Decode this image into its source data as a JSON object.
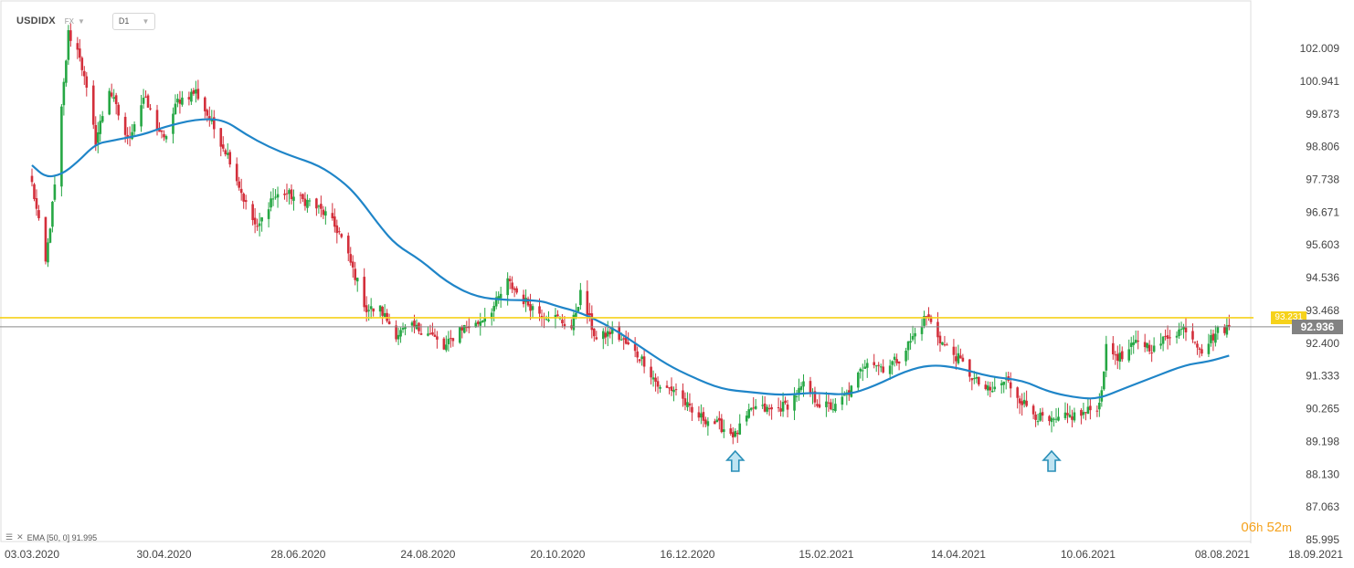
{
  "toolbar": {
    "symbol": "USDIDX",
    "type_label": "FX",
    "timeframe": "D1"
  },
  "indicator": {
    "label": "EMA [50, 0] 91.995"
  },
  "countdown": {
    "hours": "06",
    "hours_unit": "h",
    "minutes": "52",
    "minutes_unit": "m"
  },
  "chart_data": {
    "type": "candlestick",
    "symbol": "USDIDX",
    "timeframe": "D1",
    "y_axis": {
      "ticks": [
        "102.009",
        "100.941",
        "99.873",
        "98.806",
        "97.738",
        "96.671",
        "95.603",
        "94.536",
        "93.468",
        "92.400",
        "91.333",
        "90.265",
        "89.198",
        "88.130",
        "87.063",
        "85.995"
      ],
      "range": [
        85.995,
        102.5
      ]
    },
    "x_axis": {
      "ticks": [
        "03.03.2020",
        "30.04.2020",
        "28.06.2020",
        "24.08.2020",
        "20.10.2020",
        "16.12.2020",
        "15.02.2021",
        "14.04.2021",
        "10.06.2021",
        "08.08.2021",
        "18.09.2021"
      ]
    },
    "horizontal_level": {
      "value": 93.231,
      "label": "93.231",
      "color": "#f6d21b"
    },
    "current_price": {
      "value": 92.936,
      "label": "92.936",
      "color": "#828282"
    },
    "ema": {
      "name": "EMA [50, 0]",
      "last": 91.995,
      "color": "#1f85c8"
    },
    "annotations": [
      {
        "type": "up-arrow",
        "date": "06.01.2021",
        "color": "#5bc0de"
      },
      {
        "type": "up-arrow",
        "date": "25.05.2021",
        "color": "#5bc0de"
      }
    ],
    "colors": {
      "up": "#26a744",
      "down": "#d32f3b"
    },
    "price_path": [
      [
        "03.03.2020",
        97.6
      ],
      [
        "09.03.2020",
        95.0
      ],
      [
        "13.03.2020",
        97.5
      ],
      [
        "19.03.2020",
        102.5
      ],
      [
        "24.03.2020",
        101.8
      ],
      [
        "31.03.2020",
        99.0
      ],
      [
        "06.04.2020",
        100.7
      ],
      [
        "14.04.2020",
        99.0
      ],
      [
        "21.04.2020",
        100.4
      ],
      [
        "30.04.2020",
        99.0
      ],
      [
        "06.05.2020",
        100.3
      ],
      [
        "14.05.2020",
        100.6
      ],
      [
        "22.05.2020",
        99.4
      ],
      [
        "29.05.2020",
        98.4
      ],
      [
        "05.06.2020",
        96.9
      ],
      [
        "10.06.2020",
        96.1
      ],
      [
        "16.06.2020",
        97.1
      ],
      [
        "22.06.2020",
        97.3
      ],
      [
        "28.06.2020",
        97.1
      ],
      [
        "03.07.2020",
        97.0
      ],
      [
        "10.07.2020",
        96.6
      ],
      [
        "16.07.2020",
        96.0
      ],
      [
        "23.07.2020",
        94.6
      ],
      [
        "28.07.2020",
        93.5
      ],
      [
        "03.08.2020",
        93.5
      ],
      [
        "10.08.2020",
        92.7
      ],
      [
        "17.08.2020",
        92.9
      ],
      [
        "24.08.2020",
        92.8
      ],
      [
        "31.08.2020",
        92.2
      ],
      [
        "07.09.2020",
        92.9
      ],
      [
        "14.09.2020",
        93.0
      ],
      [
        "22.09.2020",
        93.6
      ],
      [
        "28.09.2020",
        94.4
      ],
      [
        "05.10.2020",
        93.8
      ],
      [
        "12.10.2020",
        93.4
      ],
      [
        "20.10.2020",
        93.2
      ],
      [
        "26.10.2020",
        92.9
      ],
      [
        "30.10.2020",
        94.0
      ],
      [
        "06.11.2020",
        92.5
      ],
      [
        "13.11.2020",
        92.8
      ],
      [
        "20.11.2020",
        92.3
      ],
      [
        "27.11.2020",
        91.8
      ],
      [
        "04.12.2020",
        90.9
      ],
      [
        "11.12.2020",
        90.9
      ],
      [
        "18.12.2020",
        90.1
      ],
      [
        "28.12.2020",
        89.8
      ],
      [
        "06.01.2021",
        89.4
      ],
      [
        "14.01.2021",
        90.3
      ],
      [
        "22.01.2021",
        90.2
      ],
      [
        "29.01.2021",
        90.4
      ],
      [
        "05.02.2021",
        91.0
      ],
      [
        "12.02.2021",
        90.4
      ],
      [
        "19.02.2021",
        90.3
      ],
      [
        "26.02.2021",
        90.9
      ],
      [
        "05.03.2021",
        91.9
      ],
      [
        "12.03.2021",
        91.6
      ],
      [
        "19.03.2021",
        91.9
      ],
      [
        "26.03.2021",
        92.7
      ],
      [
        "31.03.2021",
        93.3
      ],
      [
        "07.04.2021",
        92.4
      ],
      [
        "14.04.2021",
        91.9
      ],
      [
        "21.04.2021",
        91.2
      ],
      [
        "28.04.2021",
        90.8
      ],
      [
        "05.05.2021",
        91.2
      ],
      [
        "12.05.2021",
        90.5
      ],
      [
        "19.05.2021",
        90.0
      ],
      [
        "25.05.2021",
        89.8
      ],
      [
        "01.06.2021",
        90.0
      ],
      [
        "08.06.2021",
        90.1
      ],
      [
        "15.06.2021",
        90.4
      ],
      [
        "18.06.2021",
        92.2
      ],
      [
        "25.06.2021",
        91.9
      ],
      [
        "02.07.2021",
        92.5
      ],
      [
        "09.07.2021",
        92.2
      ],
      [
        "16.07.2021",
        92.7
      ],
      [
        "23.07.2021",
        92.9
      ],
      [
        "30.07.2021",
        92.2
      ],
      [
        "06.08.2021",
        92.8
      ],
      [
        "11.08.2021",
        92.94
      ]
    ],
    "ema_path": [
      [
        "03.03.2020",
        98.2
      ],
      [
        "09.03.2020",
        97.8
      ],
      [
        "16.03.2020",
        97.9
      ],
      [
        "23.03.2020",
        98.3
      ],
      [
        "31.03.2020",
        98.9
      ],
      [
        "07.04.2020",
        99.0
      ],
      [
        "21.04.2020",
        99.2
      ],
      [
        "30.04.2020",
        99.45
      ],
      [
        "14.05.2020",
        99.7
      ],
      [
        "26.05.2020",
        99.7
      ],
      [
        "05.06.2020",
        99.2
      ],
      [
        "15.06.2020",
        98.8
      ],
      [
        "25.06.2020",
        98.5
      ],
      [
        "07.07.2020",
        98.2
      ],
      [
        "17.07.2020",
        97.7
      ],
      [
        "24.07.2020",
        97.2
      ],
      [
        "03.08.2020",
        96.2
      ],
      [
        "10.08.2020",
        95.6
      ],
      [
        "21.08.2020",
        95.1
      ],
      [
        "01.09.2020",
        94.4
      ],
      [
        "14.09.2020",
        93.9
      ],
      [
        "28.09.2020",
        93.8
      ],
      [
        "12.10.2020",
        93.8
      ],
      [
        "20.10.2020",
        93.6
      ],
      [
        "30.10.2020",
        93.4
      ],
      [
        "13.11.2020",
        92.9
      ],
      [
        "25.11.2020",
        92.3
      ],
      [
        "07.12.2020",
        91.7
      ],
      [
        "18.12.2020",
        91.3
      ],
      [
        "31.12.2020",
        90.9
      ],
      [
        "13.01.2021",
        90.8
      ],
      [
        "27.01.2021",
        90.7
      ],
      [
        "10.02.2021",
        90.8
      ],
      [
        "24.02.2021",
        90.7
      ],
      [
        "08.03.2021",
        91.0
      ],
      [
        "22.03.2021",
        91.5
      ],
      [
        "02.04.2021",
        91.7
      ],
      [
        "14.04.2021",
        91.6
      ],
      [
        "28.04.2021",
        91.3
      ],
      [
        "12.05.2021",
        91.2
      ],
      [
        "24.05.2021",
        90.8
      ],
      [
        "07.06.2021",
        90.6
      ],
      [
        "15.06.2021",
        90.6
      ],
      [
        "25.06.2021",
        90.9
      ],
      [
        "09.07.2021",
        91.3
      ],
      [
        "23.07.2021",
        91.7
      ],
      [
        "02.08.2021",
        91.8
      ],
      [
        "11.08.2021",
        91.995
      ]
    ]
  }
}
